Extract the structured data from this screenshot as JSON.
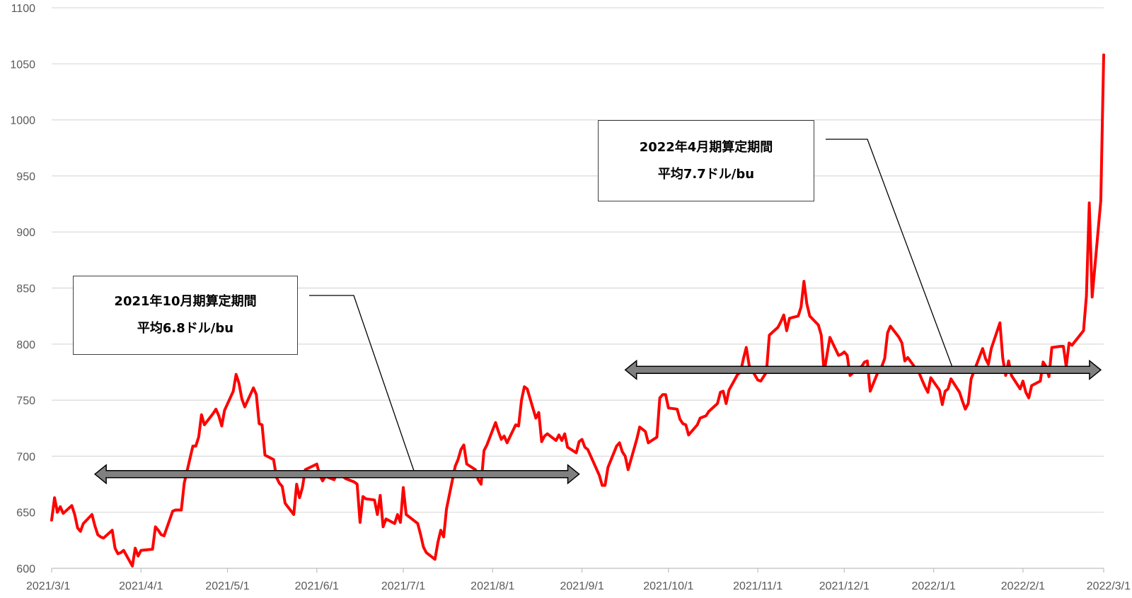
{
  "chart_data": {
    "type": "line",
    "title": "",
    "xlabel": "",
    "ylabel": "",
    "ylim": [
      600,
      1100
    ],
    "yticks": [
      600,
      650,
      700,
      750,
      800,
      850,
      900,
      950,
      1000,
      1050,
      1100
    ],
    "xlim": [
      "2021-03-01",
      "2022-03-01"
    ],
    "xtick_labels": [
      "2021/3/1",
      "2021/4/1",
      "2021/5/1",
      "2021/6/1",
      "2021/7/1",
      "2021/8/1",
      "2021/9/1",
      "2021/10/1",
      "2021/11/1",
      "2021/12/1",
      "2022/1/1",
      "2022/2/1",
      "2022/3/1"
    ],
    "xtick_dates": [
      "2021-03-01",
      "2021-04-01",
      "2021-05-01",
      "2021-06-01",
      "2021-07-01",
      "2021-08-01",
      "2021-09-01",
      "2021-10-01",
      "2021-11-01",
      "2021-12-01",
      "2022-01-01",
      "2022-02-01",
      "2022-03-01"
    ],
    "grid": true,
    "series": [
      {
        "color": "#ff0000",
        "x": [
          "2021-03-01",
          "2021-03-02",
          "2021-03-03",
          "2021-03-04",
          "2021-03-05",
          "2021-03-08",
          "2021-03-09",
          "2021-03-10",
          "2021-03-11",
          "2021-03-12",
          "2021-03-15",
          "2021-03-16",
          "2021-03-17",
          "2021-03-18",
          "2021-03-19",
          "2021-03-22",
          "2021-03-23",
          "2021-03-24",
          "2021-03-25",
          "2021-03-26",
          "2021-03-29",
          "2021-03-30",
          "2021-03-31",
          "2021-04-01",
          "2021-04-05",
          "2021-04-06",
          "2021-04-07",
          "2021-04-08",
          "2021-04-09",
          "2021-04-12",
          "2021-04-13",
          "2021-04-14",
          "2021-04-15",
          "2021-04-16",
          "2021-04-19",
          "2021-04-20",
          "2021-04-21",
          "2021-04-22",
          "2021-04-23",
          "2021-04-26",
          "2021-04-27",
          "2021-04-28",
          "2021-04-29",
          "2021-04-30",
          "2021-05-03",
          "2021-05-04",
          "2021-05-05",
          "2021-05-06",
          "2021-05-07",
          "2021-05-10",
          "2021-05-11",
          "2021-05-12",
          "2021-05-13",
          "2021-05-14",
          "2021-05-17",
          "2021-05-18",
          "2021-05-19",
          "2021-05-20",
          "2021-05-21",
          "2021-05-24",
          "2021-05-25",
          "2021-05-26",
          "2021-05-27",
          "2021-05-28",
          "2021-06-01",
          "2021-06-02",
          "2021-06-03",
          "2021-06-04",
          "2021-06-07",
          "2021-06-08",
          "2021-06-09",
          "2021-06-10",
          "2021-06-11",
          "2021-06-14",
          "2021-06-15",
          "2021-06-16",
          "2021-06-17",
          "2021-06-18",
          "2021-06-21",
          "2021-06-22",
          "2021-06-23",
          "2021-06-24",
          "2021-06-25",
          "2021-06-28",
          "2021-06-29",
          "2021-06-30",
          "2021-07-01",
          "2021-07-02",
          "2021-07-06",
          "2021-07-07",
          "2021-07-08",
          "2021-07-09",
          "2021-07-12",
          "2021-07-13",
          "2021-07-14",
          "2021-07-15",
          "2021-07-16",
          "2021-07-19",
          "2021-07-20",
          "2021-07-21",
          "2021-07-22",
          "2021-07-23",
          "2021-07-26",
          "2021-07-27",
          "2021-07-28",
          "2021-07-29",
          "2021-07-30",
          "2021-08-02",
          "2021-08-03",
          "2021-08-04",
          "2021-08-05",
          "2021-08-06",
          "2021-08-09",
          "2021-08-10",
          "2021-08-11",
          "2021-08-12",
          "2021-08-13",
          "2021-08-16",
          "2021-08-17",
          "2021-08-18",
          "2021-08-19",
          "2021-08-20",
          "2021-08-23",
          "2021-08-24",
          "2021-08-25",
          "2021-08-26",
          "2021-08-27",
          "2021-08-30",
          "2021-08-31",
          "2021-09-01",
          "2021-09-02",
          "2021-09-03",
          "2021-09-07",
          "2021-09-08",
          "2021-09-09",
          "2021-09-10",
          "2021-09-13",
          "2021-09-14",
          "2021-09-15",
          "2021-09-16",
          "2021-09-17",
          "2021-09-20",
          "2021-09-21",
          "2021-09-22",
          "2021-09-23",
          "2021-09-24",
          "2021-09-27",
          "2021-09-28",
          "2021-09-29",
          "2021-09-30",
          "2021-10-01",
          "2021-10-04",
          "2021-10-05",
          "2021-10-06",
          "2021-10-07",
          "2021-10-08",
          "2021-10-11",
          "2021-10-12",
          "2021-10-13",
          "2021-10-14",
          "2021-10-15",
          "2021-10-18",
          "2021-10-19",
          "2021-10-20",
          "2021-10-21",
          "2021-10-22",
          "2021-10-25",
          "2021-10-26",
          "2021-10-27",
          "2021-10-28",
          "2021-10-29",
          "2021-11-01",
          "2021-11-02",
          "2021-11-03",
          "2021-11-04",
          "2021-11-05",
          "2021-11-08",
          "2021-11-09",
          "2021-11-10",
          "2021-11-11",
          "2021-11-12",
          "2021-11-15",
          "2021-11-16",
          "2021-11-17",
          "2021-11-18",
          "2021-11-19",
          "2021-11-22",
          "2021-11-23",
          "2021-11-24",
          "2021-11-26",
          "2021-11-29",
          "2021-11-30",
          "2021-12-01",
          "2021-12-02",
          "2021-12-03",
          "2021-12-06",
          "2021-12-07",
          "2021-12-08",
          "2021-12-09",
          "2021-12-10",
          "2021-12-13",
          "2021-12-14",
          "2021-12-15",
          "2021-12-16",
          "2021-12-17",
          "2021-12-20",
          "2021-12-21",
          "2021-12-22",
          "2021-12-23",
          "2021-12-27",
          "2021-12-28",
          "2021-12-29",
          "2021-12-30",
          "2021-12-31",
          "2022-01-03",
          "2022-01-04",
          "2022-01-05",
          "2022-01-06",
          "2022-01-07",
          "2022-01-10",
          "2022-01-11",
          "2022-01-12",
          "2022-01-13",
          "2022-01-14",
          "2022-01-18",
          "2022-01-19",
          "2022-01-20",
          "2022-01-21",
          "2022-01-24",
          "2022-01-25",
          "2022-01-26",
          "2022-01-27",
          "2022-01-28",
          "2022-01-31",
          "2022-02-01",
          "2022-02-02",
          "2022-02-03",
          "2022-02-04",
          "2022-02-07",
          "2022-02-08",
          "2022-02-09",
          "2022-02-10",
          "2022-02-11",
          "2022-02-14",
          "2022-02-15",
          "2022-02-16",
          "2022-02-17",
          "2022-02-18",
          "2022-02-22",
          "2022-02-23",
          "2022-02-24",
          "2022-02-25",
          "2022-02-28",
          "2022-03-01"
        ],
        "y": [
          643,
          663,
          650,
          655,
          649,
          656,
          648,
          636,
          633,
          640,
          648,
          638,
          630,
          628,
          627,
          634,
          618,
          613,
          614,
          616,
          602,
          618,
          611,
          616,
          617,
          637,
          634,
          630,
          629,
          651,
          652,
          652,
          652,
          676,
          709,
          709,
          717,
          737,
          728,
          738,
          742,
          736,
          727,
          741,
          758,
          773,
          765,
          751,
          744,
          761,
          755,
          729,
          728,
          701,
          697,
          681,
          676,
          673,
          658,
          648,
          675,
          663,
          672,
          688,
          693,
          683,
          678,
          682,
          679,
          685,
          683,
          682,
          680,
          677,
          675,
          641,
          664,
          662,
          661,
          648,
          665,
          637,
          644,
          640,
          648,
          641,
          672,
          648,
          640,
          630,
          619,
          614,
          608,
          623,
          634,
          628,
          653,
          691,
          697,
          706,
          710,
          693,
          688,
          679,
          675,
          705,
          710,
          730,
          722,
          715,
          718,
          712,
          728,
          727,
          750,
          762,
          760,
          734,
          739,
          713,
          718,
          720,
          714,
          719,
          714,
          720,
          708,
          703,
          713,
          715,
          708,
          706,
          683,
          674,
          674,
          690,
          709,
          712,
          704,
          700,
          688,
          715,
          726,
          724,
          722,
          712,
          717,
          752,
          755,
          755,
          743,
          742,
          733,
          729,
          728,
          719,
          728,
          734,
          735,
          736,
          740,
          747,
          757,
          758,
          747,
          759,
          773,
          775,
          787,
          797,
          781,
          768,
          767,
          771,
          775,
          808,
          815,
          820,
          826,
          812,
          823,
          825,
          833,
          856,
          836,
          825,
          817,
          808,
          775,
          806,
          790,
          791,
          793,
          790,
          772,
          779,
          780,
          784,
          785,
          758,
          777,
          780,
          787,
          810,
          816,
          806,
          801,
          785,
          788,
          774,
          768,
          762,
          757,
          770,
          759,
          746,
          758,
          760,
          769,
          757,
          749,
          742,
          747,
          769,
          796,
          787,
          782,
          796,
          819,
          787,
          772,
          785,
          772,
          760,
          767,
          757,
          752,
          763,
          767,
          784,
          780,
          771,
          797,
          798,
          798,
          780,
          801,
          799,
          812,
          843,
          926,
          842,
          928,
          1058
        ]
      }
    ],
    "annotations": [
      {
        "id": "callout_2021",
        "lines": [
          "2021年10月期算定期間",
          "平均6.8ドル/bu"
        ],
        "range_x": [
          "2021-03-16",
          "2021-08-31"
        ],
        "level": 684,
        "bar_color": "#808080"
      },
      {
        "id": "callout_2022",
        "lines": [
          "2022年4月期算定期間",
          "平均7.7ドル/bu"
        ],
        "range_x": [
          "2021-09-16",
          "2022-02-28"
        ],
        "level": 777,
        "bar_color": "#808080"
      }
    ]
  }
}
